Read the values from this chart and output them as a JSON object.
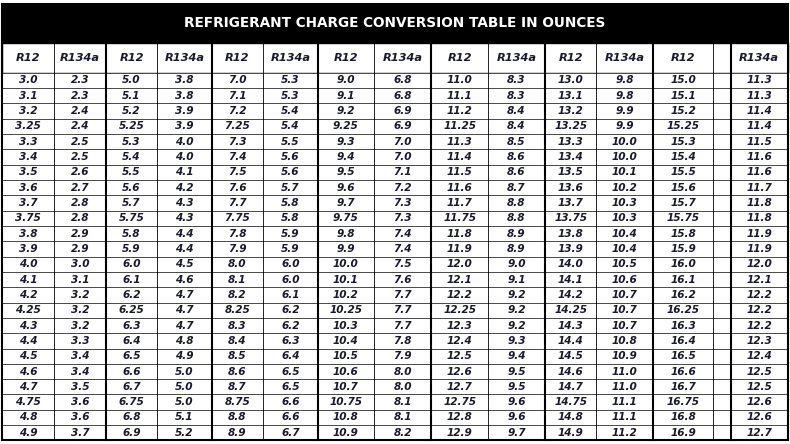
{
  "title": "REFRIGERANT CHARGE CONVERSION TABLE IN OUNCES",
  "title_bg": "#000000",
  "title_color": "#ffffff",
  "text_color": "#1a1a2e",
  "border_color": "#000000",
  "columns": [
    "R12",
    "R134a",
    "R12",
    "R134a",
    "R12",
    "R134a",
    "R12",
    "R134a",
    "R12",
    "R134a",
    "R12",
    "R134a",
    "R12",
    "",
    "R134a"
  ],
  "rows": [
    [
      "3.0",
      "2.3",
      "5.0",
      "3.8",
      "7.0",
      "5.3",
      "9.0",
      "6.8",
      "11.0",
      "8.3",
      "13.0",
      "9.8",
      "15.0",
      "",
      "11.3"
    ],
    [
      "3.1",
      "2.3",
      "5.1",
      "3.8",
      "7.1",
      "5.3",
      "9.1",
      "6.8",
      "11.1",
      "8.3",
      "13.1",
      "9.8",
      "15.1",
      "",
      "11.3"
    ],
    [
      "3.2",
      "2.4",
      "5.2",
      "3.9",
      "7.2",
      "5.4",
      "9.2",
      "6.9",
      "11.2",
      "8.4",
      "13.2",
      "9.9",
      "15.2",
      "",
      "11.4"
    ],
    [
      "3.25",
      "2.4",
      "5.25",
      "3.9",
      "7.25",
      "5.4",
      "9.25",
      "6.9",
      "11.25",
      "8.4",
      "13.25",
      "9.9",
      "15.25",
      "",
      "11.4"
    ],
    [
      "3.3",
      "2.5",
      "5.3",
      "4.0",
      "7.3",
      "5.5",
      "9.3",
      "7.0",
      "11.3",
      "8.5",
      "13.3",
      "10.0",
      "15.3",
      "",
      "11.5"
    ],
    [
      "3.4",
      "2.5",
      "5.4",
      "4.0",
      "7.4",
      "5.6",
      "9.4",
      "7.0",
      "11.4",
      "8.6",
      "13.4",
      "10.0",
      "15.4",
      "",
      "11.6"
    ],
    [
      "3.5",
      "2.6",
      "5.5",
      "4.1",
      "7.5",
      "5.6",
      "9.5",
      "7.1",
      "11.5",
      "8.6",
      "13.5",
      "10.1",
      "15.5",
      "",
      "11.6"
    ],
    [
      "3.6",
      "2.7",
      "5.6",
      "4.2",
      "7.6",
      "5.7",
      "9.6",
      "7.2",
      "11.6",
      "8.7",
      "13.6",
      "10.2",
      "15.6",
      "",
      "11.7"
    ],
    [
      "3.7",
      "2.8",
      "5.7",
      "4.3",
      "7.7",
      "5.8",
      "9.7",
      "7.3",
      "11.7",
      "8.8",
      "13.7",
      "10.3",
      "15.7",
      "",
      "11.8"
    ],
    [
      "3.75",
      "2.8",
      "5.75",
      "4.3",
      "7.75",
      "5.8",
      "9.75",
      "7.3",
      "11.75",
      "8.8",
      "13.75",
      "10.3",
      "15.75",
      "",
      "11.8"
    ],
    [
      "3.8",
      "2.9",
      "5.8",
      "4.4",
      "7.8",
      "5.9",
      "9.8",
      "7.4",
      "11.8",
      "8.9",
      "13.8",
      "10.4",
      "15.8",
      "",
      "11.9"
    ],
    [
      "3.9",
      "2.9",
      "5.9",
      "4.4",
      "7.9",
      "5.9",
      "9.9",
      "7.4",
      "11.9",
      "8.9",
      "13.9",
      "10.4",
      "15.9",
      "",
      "11.9"
    ],
    [
      "4.0",
      "3.0",
      "6.0",
      "4.5",
      "8.0",
      "6.0",
      "10.0",
      "7.5",
      "12.0",
      "9.0",
      "14.0",
      "10.5",
      "16.0",
      "",
      "12.0"
    ],
    [
      "4.1",
      "3.1",
      "6.1",
      "4.6",
      "8.1",
      "6.0",
      "10.1",
      "7.6",
      "12.1",
      "9.1",
      "14.1",
      "10.6",
      "16.1",
      "",
      "12.1"
    ],
    [
      "4.2",
      "3.2",
      "6.2",
      "4.7",
      "8.2",
      "6.1",
      "10.2",
      "7.7",
      "12.2",
      "9.2",
      "14.2",
      "10.7",
      "16.2",
      "",
      "12.2"
    ],
    [
      "4.25",
      "3.2",
      "6.25",
      "4.7",
      "8.25",
      "6.2",
      "10.25",
      "7.7",
      "12.25",
      "9.2",
      "14.25",
      "10.7",
      "16.25",
      "",
      "12.2"
    ],
    [
      "4.3",
      "3.2",
      "6.3",
      "4.7",
      "8.3",
      "6.2",
      "10.3",
      "7.7",
      "12.3",
      "9.2",
      "14.3",
      "10.7",
      "16.3",
      "",
      "12.2"
    ],
    [
      "4.4",
      "3.3",
      "6.4",
      "4.8",
      "8.4",
      "6.3",
      "10.4",
      "7.8",
      "12.4",
      "9.3",
      "14.4",
      "10.8",
      "16.4",
      "",
      "12.3"
    ],
    [
      "4.5",
      "3.4",
      "6.5",
      "4.9",
      "8.5",
      "6.4",
      "10.5",
      "7.9",
      "12.5",
      "9.4",
      "14.5",
      "10.9",
      "16.5",
      "",
      "12.4"
    ],
    [
      "4.6",
      "3.4",
      "6.6",
      "5.0",
      "8.6",
      "6.5",
      "10.6",
      "8.0",
      "12.6",
      "9.5",
      "14.6",
      "11.0",
      "16.6",
      "",
      "12.5"
    ],
    [
      "4.7",
      "3.5",
      "6.7",
      "5.0",
      "8.7",
      "6.5",
      "10.7",
      "8.0",
      "12.7",
      "9.5",
      "14.7",
      "11.0",
      "16.7",
      "",
      "12.5"
    ],
    [
      "4.75",
      "3.6",
      "6.75",
      "5.0",
      "8.75",
      "6.6",
      "10.75",
      "8.1",
      "12.75",
      "9.6",
      "14.75",
      "11.1",
      "16.75",
      "",
      "12.6"
    ],
    [
      "4.8",
      "3.6",
      "6.8",
      "5.1",
      "8.8",
      "6.6",
      "10.8",
      "8.1",
      "12.8",
      "9.6",
      "14.8",
      "11.1",
      "16.8",
      "",
      "12.6"
    ],
    [
      "4.9",
      "3.7",
      "6.9",
      "5.2",
      "8.9",
      "6.7",
      "10.9",
      "8.2",
      "12.9",
      "9.7",
      "14.9",
      "11.2",
      "16.9",
      "",
      "12.7"
    ]
  ],
  "col_widths": [
    1.0,
    1.0,
    1.0,
    1.05,
    1.0,
    1.05,
    1.1,
    1.1,
    1.1,
    1.1,
    1.0,
    1.1,
    1.15,
    0.35,
    1.1
  ],
  "thick_dividers_after": [
    1,
    3,
    5,
    7,
    9,
    11,
    13
  ],
  "figsize": [
    7.9,
    4.44
  ],
  "dpi": 100,
  "title_fontsize": 9.8,
  "header_fontsize": 8.2,
  "data_fontsize": 7.6
}
